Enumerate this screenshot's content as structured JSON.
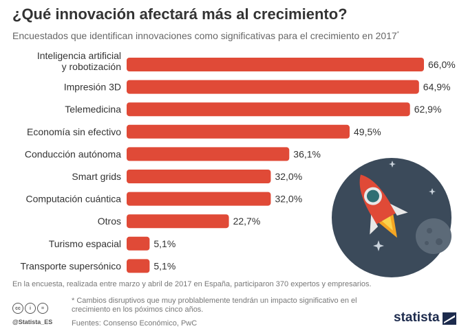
{
  "header": {
    "title": "¿Qué innovación afectará más al crecimiento?",
    "subtitle": "Encuestados que identifican innovaciones como significativas para el crecimiento en 2017",
    "subtitle_mark": "*"
  },
  "colors": {
    "bar": "#e04a37",
    "circle": "#3b4a5a"
  },
  "chart_data": {
    "type": "bar",
    "orientation": "horizontal",
    "categories": [
      "Inteligencia artificial y robotización",
      "Impresión 3D",
      "Telemedicina",
      "Economía sin efectivo",
      "Conducción autónoma",
      "Smart grids",
      "Computación cuántica",
      "Otros",
      "Turismo espacial",
      "Transporte supersónico"
    ],
    "category_lines": [
      [
        "Inteligencia artificial",
        "y robotización"
      ],
      [
        "Impresión 3D"
      ],
      [
        "Telemedicina"
      ],
      [
        "Economía sin efectivo"
      ],
      [
        "Conducción autónoma"
      ],
      [
        "Smart grids"
      ],
      [
        "Computación cuántica"
      ],
      [
        "Otros"
      ],
      [
        "Turismo espacial"
      ],
      [
        "Transporte supersónico"
      ]
    ],
    "values": [
      66.0,
      64.9,
      62.9,
      49.5,
      36.1,
      32.0,
      32.0,
      22.7,
      5.1,
      5.1
    ],
    "value_labels": [
      "66,0%",
      "64,9%",
      "62,9%",
      "49,5%",
      "36,1%",
      "32,0%",
      "32,0%",
      "22,7%",
      "5,1%",
      "5,1%"
    ],
    "xlim": [
      0,
      66
    ],
    "grid": false,
    "legend": "none"
  },
  "footer": {
    "note": "En la encuesta, realizada entre marzo y abril de 2017 en España, participaron 370 expertos y empresarios.",
    "footnote": "* Cambios disruptivos que muy problablemente tendrán un impacto significativo en el crecimiento en los póximos cinco años.",
    "source": "Fuentes: Consenso Económico, PwC",
    "handle": "@Statista_ES",
    "brand": "statista",
    "license_icons": [
      "cc",
      "i",
      "="
    ]
  }
}
